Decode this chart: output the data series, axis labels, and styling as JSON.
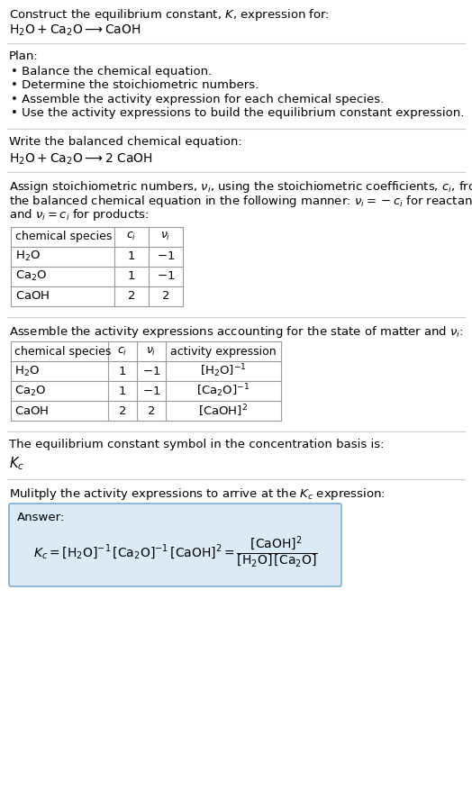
{
  "title_line1": "Construct the equilibrium constant, $K$, expression for:",
  "title_line2": "$\\mathrm{H_2O + Ca_2O \\longrightarrow CaOH}$",
  "plan_header": "Plan:",
  "plan_bullets": [
    "• Balance the chemical equation.",
    "• Determine the stoichiometric numbers.",
    "• Assemble the activity expression for each chemical species.",
    "• Use the activity expressions to build the equilibrium constant expression."
  ],
  "balanced_eq_header": "Write the balanced chemical equation:",
  "balanced_eq": "$\\mathrm{H_2O + Ca_2O \\longrightarrow 2\\ CaOH}$",
  "stoich_header_parts": [
    "Assign stoichiometric numbers, $\\nu_i$, using the stoichiometric coefficients, $c_i$, from",
    "the balanced chemical equation in the following manner: $\\nu_i = -c_i$ for reactants",
    "and $\\nu_i = c_i$ for products:"
  ],
  "table1_headers": [
    "chemical species",
    "$c_i$",
    "$\\nu_i$"
  ],
  "table1_rows": [
    [
      "$\\mathrm{H_2O}$",
      "1",
      "$-1$"
    ],
    [
      "$\\mathrm{Ca_2O}$",
      "1",
      "$-1$"
    ],
    [
      "$\\mathrm{CaOH}$",
      "2",
      "2"
    ]
  ],
  "activity_header": "Assemble the activity expressions accounting for the state of matter and $\\nu_i$:",
  "table2_headers": [
    "chemical species",
    "$c_i$",
    "$\\nu_i$",
    "activity expression"
  ],
  "table2_rows": [
    [
      "$\\mathrm{H_2O}$",
      "1",
      "$-1$",
      "$[\\mathrm{H_2O}]^{-1}$"
    ],
    [
      "$\\mathrm{Ca_2O}$",
      "1",
      "$-1$",
      "$[\\mathrm{Ca_2O}]^{-1}$"
    ],
    [
      "$\\mathrm{CaOH}$",
      "2",
      "2",
      "$[\\mathrm{CaOH}]^{2}$"
    ]
  ],
  "kc_symbol_text": "The equilibrium constant symbol in the concentration basis is:",
  "kc_symbol": "$K_c$",
  "multiply_text": "Mulitply the activity expressions to arrive at the $K_c$ expression:",
  "answer_label": "Answer:",
  "answer_line1": "$K_c = [\\mathrm{H_2O}]^{-1}\\,[\\mathrm{Ca_2O}]^{-1}\\,[\\mathrm{CaOH}]^{2} = \\dfrac{[\\mathrm{CaOH}]^{2}}{[\\mathrm{H_2O}]\\,[\\mathrm{Ca_2O}]}$",
  "bg_color": "#ffffff",
  "answer_box_color": "#daeaf7",
  "answer_box_edge": "#7bafd4",
  "table_line_color": "#999999",
  "text_color": "#000000",
  "font_size": 9.5
}
